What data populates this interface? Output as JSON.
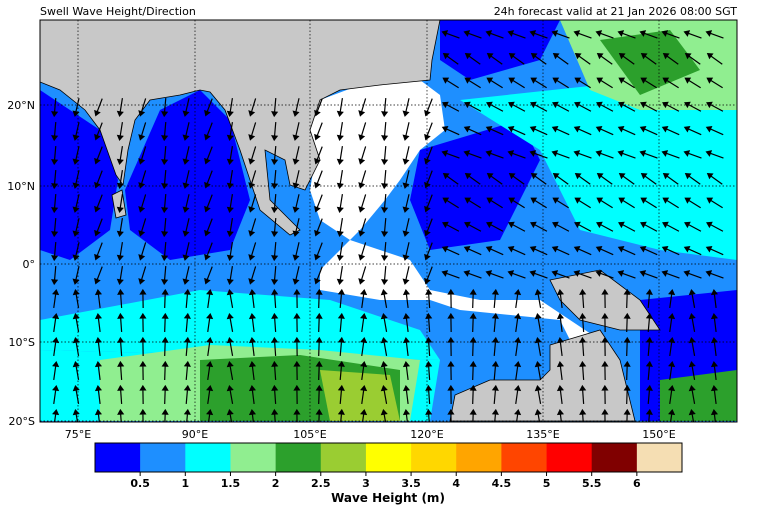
{
  "header": {
    "title": "Swell Wave Height/Direction",
    "valid": "24h forecast valid at 21 Jan 2026 08:00 SGT"
  },
  "map": {
    "lat_labels": [
      "20°N",
      "10°N",
      "0°",
      "10°S",
      "20°S"
    ],
    "lon_labels": [
      "75°E",
      "90°E",
      "105°E",
      "120°E",
      "135°E",
      "150°E"
    ]
  },
  "colorbar": {
    "colors": [
      "#0000ff",
      "#1e8fff",
      "#00ffff",
      "#90ee90",
      "#2ca02c",
      "#9acd32",
      "#ffff00",
      "#ffd700",
      "#ffa500",
      "#ff4500",
      "#ff0000",
      "#800000",
      "#f5deb3"
    ],
    "ticks": [
      "0.5",
      "1",
      "1.5",
      "2",
      "2.5",
      "3",
      "3.5",
      "4",
      "4.5",
      "5",
      "5.5",
      "6"
    ],
    "label": "Wave Height (m)"
  }
}
